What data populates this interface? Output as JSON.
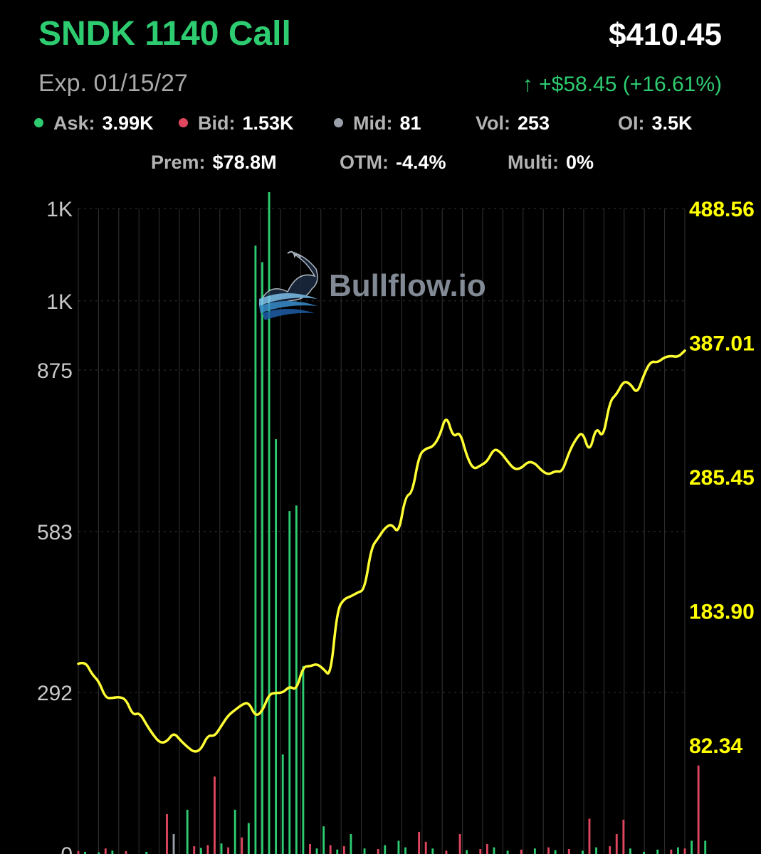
{
  "header": {
    "title": "SNDK 1140 Call",
    "price": "$410.45",
    "expiration": "Exp. 01/15/27",
    "change": "↑ +$58.45 (+16.61%)"
  },
  "stats": {
    "ask": {
      "label": "Ask:",
      "value": "3.99K",
      "color": "#2ecc71"
    },
    "bid": {
      "label": "Bid:",
      "value": "1.53K",
      "color": "#e0475f"
    },
    "mid": {
      "label": "Mid:",
      "value": "81",
      "color": "#9aa0aa"
    },
    "vol": {
      "label": "Vol:",
      "value": "253"
    },
    "oi": {
      "label": "OI:",
      "value": "3.5K"
    },
    "prem": {
      "label": "Prem:",
      "value": "$78.8M"
    },
    "otm": {
      "label": "OTM:",
      "value": "-4.4%"
    },
    "multi": {
      "label": "Multi:",
      "value": "0%"
    }
  },
  "watermark": {
    "text": "Bullflow.io",
    "icon": "bull-logo-icon"
  },
  "colors": {
    "accent_green": "#2ecc71",
    "bid_red": "#e0475f",
    "price_line": "#ffff33",
    "right_axis_text": "#ffff00",
    "grid": "#333333"
  },
  "chart_data": {
    "type": "line",
    "grid": true,
    "left_axis": {
      "ticks": [
        {
          "label": "1K",
          "value": 1167
        },
        {
          "label": "1K",
          "value": 1000
        },
        {
          "label": "875",
          "value": 875
        },
        {
          "label": "583",
          "value": 583
        },
        {
          "label": "292",
          "value": 292
        },
        {
          "label": "0",
          "value": 0
        }
      ],
      "range": [
        0,
        1167
      ]
    },
    "right_axis": {
      "ticks": [
        {
          "label": "488.56",
          "value": 488.56
        },
        {
          "label": "387.01",
          "value": 387.01
        },
        {
          "label": "285.45",
          "value": 285.45
        },
        {
          "label": "183.90",
          "value": 183.9
        },
        {
          "label": "82.34",
          "value": 82.34
        }
      ],
      "range": [
        0,
        488.56
      ]
    },
    "series": [
      {
        "type": "line",
        "color": "#ffff33",
        "axis": "right",
        "values": [
          144,
          146,
          136,
          131,
          118,
          118,
          119,
          117,
          105,
          107,
          98,
          90,
          84,
          85,
          92,
          86,
          81,
          77,
          79,
          90,
          89,
          97,
          105,
          109,
          113,
          115,
          104,
          108,
          121,
          122,
          122,
          127,
          124,
          142,
          142,
          144,
          140,
          134,
          185,
          193,
          195,
          198,
          200,
          232,
          239,
          247,
          250,
          242,
          271,
          273,
          302,
          307,
          308,
          316,
          333,
          315,
          320,
          301,
          291,
          294,
          297,
          307,
          304,
          297,
          291,
          292,
          297,
          296,
          290,
          287,
          290,
          289,
          304,
          314,
          320,
          303,
          324,
          314,
          343,
          348,
          358,
          356,
          348,
          363,
          373,
          372,
          376,
          377,
          376,
          381
        ]
      },
      {
        "type": "bar",
        "axis": "left",
        "bars": [
          {
            "i": 0,
            "v": 5,
            "c": "#e0475f"
          },
          {
            "i": 1,
            "v": 4,
            "c": "#2ecc71"
          },
          {
            "i": 3,
            "v": 3,
            "c": "#2ecc71"
          },
          {
            "i": 4,
            "v": 10,
            "c": "#e0475f"
          },
          {
            "i": 5,
            "v": 6,
            "c": "#2ecc71"
          },
          {
            "i": 7,
            "v": 5,
            "c": "#e0475f"
          },
          {
            "i": 10,
            "v": 4,
            "c": "#2ecc71"
          },
          {
            "i": 13,
            "v": 72,
            "c": "#e0475f"
          },
          {
            "i": 14,
            "v": 36,
            "c": "#9aa0aa"
          },
          {
            "i": 16,
            "v": 80,
            "c": "#2ecc71"
          },
          {
            "i": 17,
            "v": 14,
            "c": "#e0475f"
          },
          {
            "i": 18,
            "v": 11,
            "c": "#2ecc71"
          },
          {
            "i": 19,
            "v": 16,
            "c": "#e0475f"
          },
          {
            "i": 20,
            "v": 140,
            "c": "#e0475f"
          },
          {
            "i": 21,
            "v": 19,
            "c": "#2ecc71"
          },
          {
            "i": 22,
            "v": 12,
            "c": "#e0475f"
          },
          {
            "i": 23,
            "v": 80,
            "c": "#2ecc71"
          },
          {
            "i": 24,
            "v": 30,
            "c": "#e0475f"
          },
          {
            "i": 25,
            "v": 56,
            "c": "#2ecc71"
          },
          {
            "i": 26,
            "v": 1100,
            "c": "#2ecc71"
          },
          {
            "i": 27,
            "v": 1070,
            "c": "#2ecc71"
          },
          {
            "i": 28,
            "v": 1600,
            "c": "#2ecc71"
          },
          {
            "i": 29,
            "v": 750,
            "c": "#2ecc71"
          },
          {
            "i": 30,
            "v": 180,
            "c": "#2ecc71"
          },
          {
            "i": 31,
            "v": 620,
            "c": "#2ecc71"
          },
          {
            "i": 32,
            "v": 630,
            "c": "#2ecc71"
          },
          {
            "i": 33,
            "v": 340,
            "c": "#2ecc71"
          },
          {
            "i": 34,
            "v": 18,
            "c": "#e0475f"
          },
          {
            "i": 35,
            "v": 10,
            "c": "#2ecc71"
          },
          {
            "i": 36,
            "v": 50,
            "c": "#2ecc71"
          },
          {
            "i": 37,
            "v": 16,
            "c": "#e0475f"
          },
          {
            "i": 38,
            "v": 8,
            "c": "#2ecc71"
          },
          {
            "i": 39,
            "v": 14,
            "c": "#e0475f"
          },
          {
            "i": 40,
            "v": 36,
            "c": "#2ecc71"
          },
          {
            "i": 42,
            "v": 10,
            "c": "#2ecc71"
          },
          {
            "i": 44,
            "v": 9,
            "c": "#e0475f"
          },
          {
            "i": 45,
            "v": 16,
            "c": "#2ecc71"
          },
          {
            "i": 47,
            "v": 24,
            "c": "#2ecc71"
          },
          {
            "i": 48,
            "v": 12,
            "c": "#2ecc71"
          },
          {
            "i": 50,
            "v": 40,
            "c": "#e0475f"
          },
          {
            "i": 51,
            "v": 22,
            "c": "#e0475f"
          },
          {
            "i": 52,
            "v": 10,
            "c": "#2ecc71"
          },
          {
            "i": 54,
            "v": 6,
            "c": "#e0475f"
          },
          {
            "i": 56,
            "v": 36,
            "c": "#e0475f"
          },
          {
            "i": 57,
            "v": 7,
            "c": "#2ecc71"
          },
          {
            "i": 59,
            "v": 9,
            "c": "#e0475f"
          },
          {
            "i": 60,
            "v": 18,
            "c": "#e0475f"
          },
          {
            "i": 61,
            "v": 12,
            "c": "#2ecc71"
          },
          {
            "i": 63,
            "v": 6,
            "c": "#2ecc71"
          },
          {
            "i": 65,
            "v": 8,
            "c": "#e0475f"
          },
          {
            "i": 67,
            "v": 10,
            "c": "#2ecc71"
          },
          {
            "i": 69,
            "v": 12,
            "c": "#e0475f"
          },
          {
            "i": 70,
            "v": 7,
            "c": "#2ecc71"
          },
          {
            "i": 72,
            "v": 9,
            "c": "#e0475f"
          },
          {
            "i": 74,
            "v": 6,
            "c": "#2ecc71"
          },
          {
            "i": 75,
            "v": 64,
            "c": "#e0475f"
          },
          {
            "i": 76,
            "v": 12,
            "c": "#2ecc71"
          },
          {
            "i": 78,
            "v": 14,
            "c": "#e0475f"
          },
          {
            "i": 79,
            "v": 36,
            "c": "#e0475f"
          },
          {
            "i": 80,
            "v": 62,
            "c": "#e0475f"
          },
          {
            "i": 81,
            "v": 10,
            "c": "#2ecc71"
          },
          {
            "i": 83,
            "v": 4,
            "c": "#2ecc71"
          },
          {
            "i": 85,
            "v": 8,
            "c": "#2ecc71"
          },
          {
            "i": 87,
            "v": 8,
            "c": "#e0475f"
          },
          {
            "i": 88,
            "v": 12,
            "c": "#2ecc71"
          },
          {
            "i": 89,
            "v": 10,
            "c": "#e0475f"
          },
          {
            "i": 90,
            "v": 24,
            "c": "#2ecc71"
          },
          {
            "i": 91,
            "v": 160,
            "c": "#e0475f"
          },
          {
            "i": 92,
            "v": 24,
            "c": "#2ecc71"
          }
        ]
      }
    ]
  }
}
